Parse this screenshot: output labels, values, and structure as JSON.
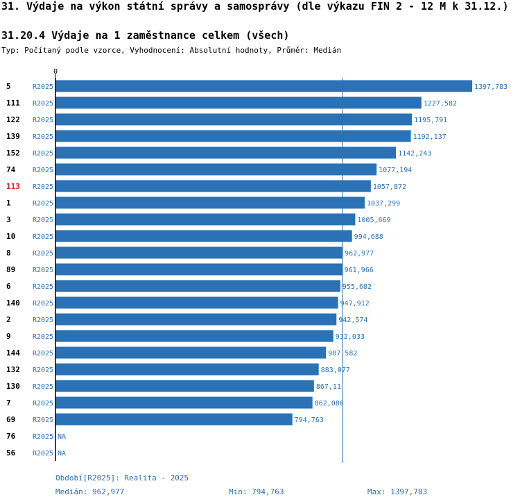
{
  "section_title": "31. Výdaje na výkon státní správy a samosprávy (dle výkazu FIN 2 - 12 M k 31.12.)",
  "indicator_title": "31.20.4 Výdaje na 1 zaměstnance celkem (všech)",
  "subtitle": "Typ: Počítaný podle vzorce, Vyhodnocení: Absolutní hodnoty, Průměr: Medián",
  "colors": {
    "bar": "#2a72b5",
    "label": "#2a6fb5",
    "highlight": "#e02020",
    "axis": "#000000"
  },
  "chart_data": {
    "type": "bar",
    "orientation": "horizontal",
    "title": "31.20.4 Výdaje na 1 zaměstnance celkem (všech)",
    "axis_zero_label": "0",
    "xlim": [
      0,
      1397.783
    ],
    "median": 962.977,
    "highlight_category": "113",
    "period_label": "R2025",
    "categories": [
      "5",
      "111",
      "122",
      "139",
      "152",
      "74",
      "113",
      "1",
      "3",
      "10",
      "8",
      "89",
      "6",
      "140",
      "2",
      "9",
      "144",
      "132",
      "130",
      "7",
      "69",
      "76",
      "56"
    ],
    "values": [
      1397.783,
      1227.582,
      1195.791,
      1192.137,
      1142.243,
      1077.194,
      1057.872,
      1037.299,
      1005.669,
      994.688,
      962.977,
      961.966,
      955.682,
      947.912,
      942.574,
      932.033,
      907.582,
      883.077,
      867.11,
      862.086,
      794.763,
      null,
      null
    ],
    "value_labels": [
      "1397,783",
      "1227,582",
      "1195,791",
      "1192,137",
      "1142,243",
      "1077,194",
      "1057,872",
      "1037,299",
      "1005,669",
      "994,688",
      "962,977",
      "961,966",
      "955,682",
      "947,912",
      "942,574",
      "932,033",
      "907,582",
      "883,077",
      "867,11",
      "862,086",
      "794,763",
      "NA",
      "NA"
    ]
  },
  "footer": {
    "period": "Období[R2025]: Realita - 2025",
    "median": "Medián: 962,977",
    "min": "Min: 794,763",
    "max": "Max: 1397,783"
  }
}
